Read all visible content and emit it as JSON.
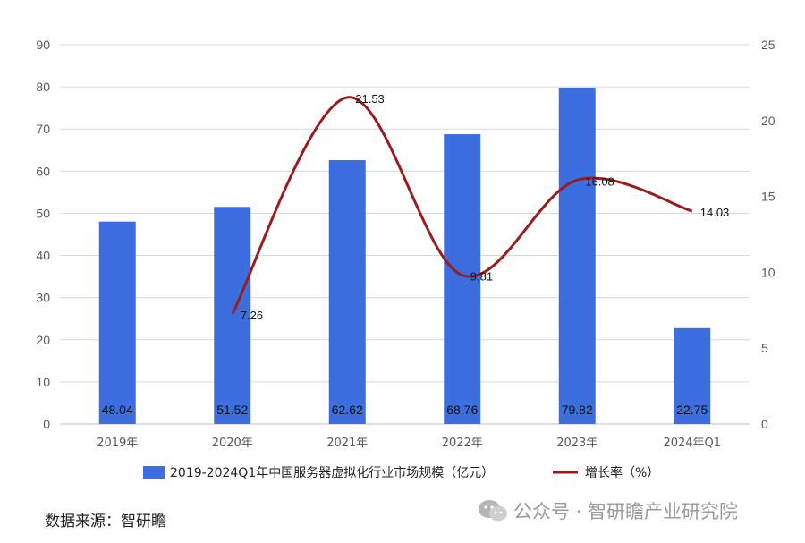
{
  "chart_data": {
    "type": "bar",
    "categories": [
      "2019年",
      "2020年",
      "2021年",
      "2022年",
      "2023年",
      "2024年Q1"
    ],
    "series": [
      {
        "name": "2019-2024Q1年中国服务器虚拟化行业市场规模（亿元）",
        "type": "bar",
        "axis": "left",
        "values": [
          48.04,
          51.52,
          62.62,
          68.76,
          79.82,
          22.75
        ],
        "labels": [
          "48.04",
          "51.52",
          "62.62",
          "68.76",
          "79.82",
          "22.75"
        ]
      },
      {
        "name": "增长率（%）",
        "type": "line",
        "axis": "right",
        "values": [
          null,
          7.26,
          21.53,
          9.81,
          16.08,
          14.03
        ],
        "labels": [
          "",
          "7.26",
          "21.53",
          "9.81",
          "16.08",
          "14.03"
        ]
      }
    ],
    "y_left": {
      "ylim": [
        0,
        90
      ],
      "ticks": [
        "0",
        "10",
        "20",
        "30",
        "40",
        "50",
        "60",
        "70",
        "80",
        "90"
      ]
    },
    "y_right": {
      "ylim": [
        0,
        25
      ],
      "ticks": [
        "0",
        "5",
        "10",
        "15",
        "20",
        "25"
      ]
    },
    "grid": true,
    "legend": "bottom",
    "colors": {
      "bar": "#3c6ee0",
      "line": "#9b1c1c",
      "grid": "#d9d9d9",
      "axis_text": "#595959"
    }
  },
  "footer": {
    "source": "数据来源：智研瞻",
    "watermark": "公众号 · 智研瞻产业研究院",
    "watermark_icon": "wechat-icon"
  }
}
